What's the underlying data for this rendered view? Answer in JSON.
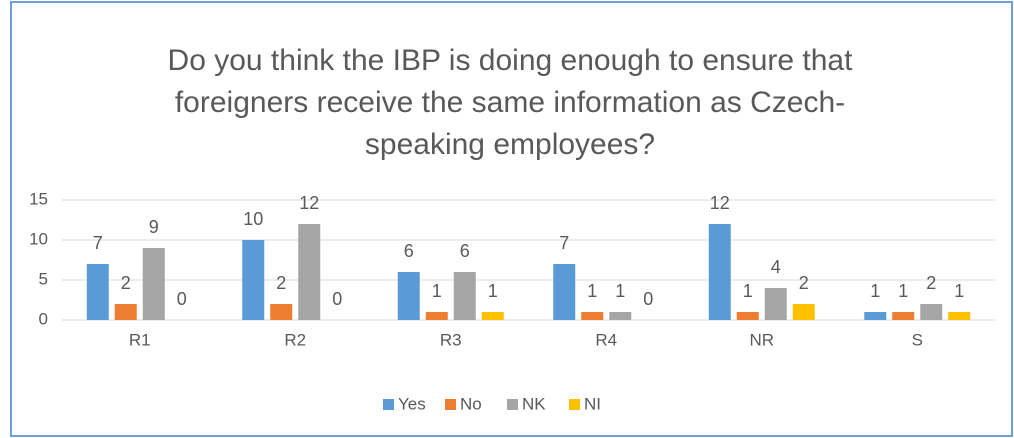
{
  "chart_data": {
    "type": "bar",
    "title": "Do you think the IBP is doing enough to ensure that foreigners receive the same information as Czech-speaking employees?",
    "categories": [
      "R1",
      "R2",
      "R3",
      "R4",
      "NR",
      "S"
    ],
    "series": [
      {
        "name": "Yes",
        "color": "#5b9bd5",
        "values": [
          7,
          10,
          6,
          7,
          12,
          1
        ]
      },
      {
        "name": "No",
        "color": "#ed7d31",
        "values": [
          2,
          2,
          1,
          1,
          1,
          1
        ]
      },
      {
        "name": "NK",
        "color": "#a5a5a5",
        "values": [
          9,
          12,
          6,
          1,
          4,
          2
        ]
      },
      {
        "name": "NI",
        "color": "#ffc000",
        "values": [
          0,
          0,
          1,
          0,
          2,
          1
        ]
      }
    ],
    "ylim": [
      0,
      15
    ],
    "yticks": [
      0,
      5,
      10,
      15
    ],
    "grid": true,
    "legend": "bottom"
  }
}
